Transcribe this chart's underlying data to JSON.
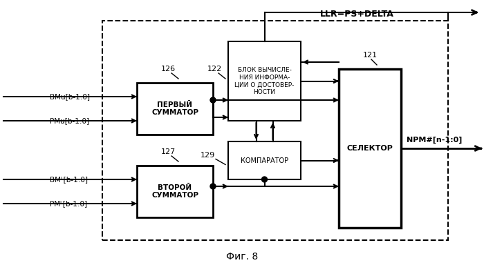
{
  "bg_color": "#ffffff",
  "fig_caption": "Фиг. 8",
  "llr_label": "LLR=PS+DELTA",
  "npm_label": "NPM#[n-1:0]",
  "summ1_text": "ПЕРВЫЙ\nСУММАТОР",
  "summ2_text": "ВТОРОЙ\nСУММАТОР",
  "blok_text": "БЛОК ВЫЧИСЛЕ-\nНИЯ ИНФОРМА-\nЦИИ О ДОСТОВЕР-\nНОСТИ",
  "komp_text": "КОМПАРАТОР",
  "sel_text": "СЕЛЕКТОР",
  "label_126": "126",
  "label_122": "122",
  "label_127": "127",
  "label_129": "129",
  "label_121": "121",
  "bmu_text": "BMu[b-1:0]",
  "pmu_text": "PMu[b-1:0]",
  "bml_text": "BMᴸ[b-1:0]",
  "pml_text": "PMᴸ[b-1:0]"
}
